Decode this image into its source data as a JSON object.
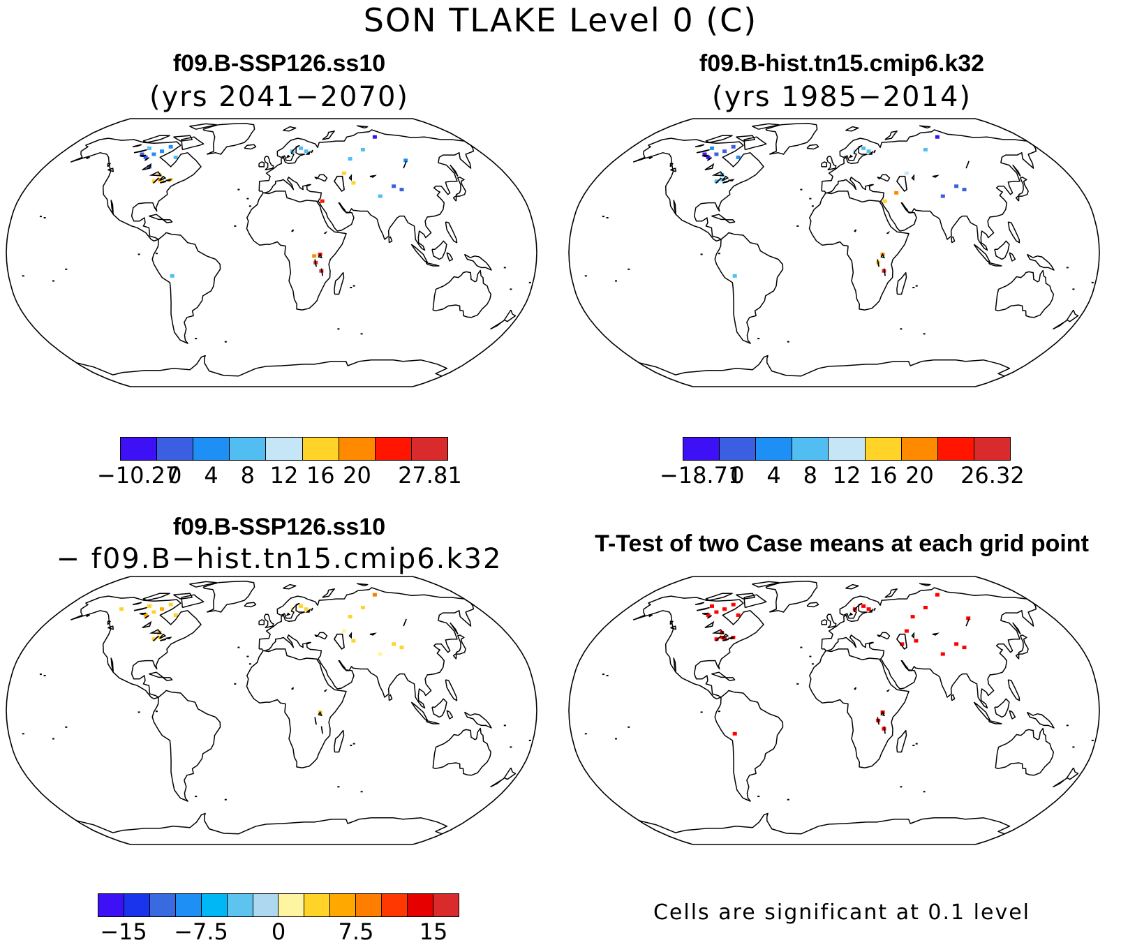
{
  "title": "SON TLAKE Level 0 (C)",
  "panels": [
    {
      "id": "case1",
      "title": "f09.B-SSP126.ss10",
      "subtitle": "(yrs 2041−2070)"
    },
    {
      "id": "case2",
      "title": "f09.B-hist.tn15.cmip6.k32",
      "subtitle": "(yrs 1985−2014)"
    },
    {
      "id": "diff",
      "title": "f09.B-SSP126.ss10",
      "subtitle": "− f09.B−hist.tn15.cmip6.k32"
    },
    {
      "id": "ttest",
      "title": "T-Test of two Case means at each grid point"
    }
  ],
  "ttest_note": "Cells are significant at 0.1 level",
  "projection": "robinson",
  "colorbars": [
    {
      "id": "case1",
      "colors": [
        "#3e10f5",
        "#3a5fe0",
        "#1e8ff5",
        "#52bdf0",
        "#c5e6f7",
        "#ffd328",
        "#ff8a00",
        "#ff1500",
        "#d92b2b"
      ],
      "labels": [
        "−10.27",
        "0",
        "4",
        "8",
        "12",
        "16",
        "20",
        "",
        "27.81"
      ]
    },
    {
      "id": "case2",
      "colors": [
        "#3e10f5",
        "#3a5fe0",
        "#1e8ff5",
        "#52bdf0",
        "#c5e6f7",
        "#ffd328",
        "#ff8a00",
        "#ff1500",
        "#d92b2b"
      ],
      "labels": [
        "−18.71",
        "0",
        "4",
        "8",
        "12",
        "16",
        "20",
        "",
        "26.32"
      ]
    },
    {
      "id": "diff",
      "colors": [
        "#3e10f5",
        "#1a34ee",
        "#3a6ae0",
        "#1e8ff5",
        "#00b7f5",
        "#5ec3ef",
        "#add8ef",
        "#fff5a0",
        "#ffd328",
        "#ffa800",
        "#ff7d00",
        "#ff3700",
        "#e60000",
        "#d92b2b"
      ],
      "labels": [
        "−15",
        "−7.5",
        "0",
        "7.5",
        "15"
      ],
      "label_values": [
        -15,
        -7.5,
        0,
        7.5,
        15
      ],
      "range": [
        -17.5,
        17.5
      ]
    }
  ]
}
